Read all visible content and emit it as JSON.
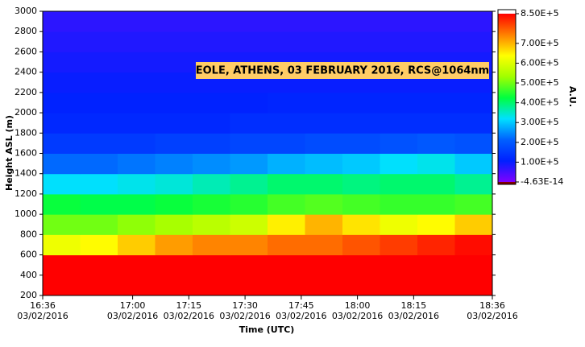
{
  "chart_data": {
    "type": "heatmap",
    "title": "EOLE, ATHENS, 03 FEBRUARY 2016, RCS@1064nm",
    "xlabel": "Time (UTC)",
    "ylabel": "Height ASL (m)",
    "colorbar_label": "A.U.",
    "xlim": [
      "16:36",
      "18:36"
    ],
    "xticks": [
      {
        "time": "16:36",
        "date": "03/02/2016"
      },
      {
        "time": "17:00",
        "date": "03/02/2016"
      },
      {
        "time": "17:15",
        "date": "03/02/2016"
      },
      {
        "time": "17:30",
        "date": "03/02/2016"
      },
      {
        "time": "17:45",
        "date": "03/02/2016"
      },
      {
        "time": "18:00",
        "date": "03/02/2016"
      },
      {
        "time": "18:15",
        "date": "03/02/2016"
      },
      {
        "time": "18:36",
        "date": "03/02/2016"
      }
    ],
    "ylim": [
      200,
      3000
    ],
    "yticks": [
      200,
      400,
      600,
      800,
      1000,
      1200,
      1400,
      1600,
      1800,
      2000,
      2200,
      2400,
      2600,
      2800,
      3000
    ],
    "clim": [
      -4.63e-14,
      850000
    ],
    "cticks": [
      {
        "value": 850000,
        "label": "8.50E+5"
      },
      {
        "value": 700000,
        "label": "7.00E+5"
      },
      {
        "value": 600000,
        "label": "6.00E+5"
      },
      {
        "value": 500000,
        "label": "5.00E+5"
      },
      {
        "value": 400000,
        "label": "4.00E+5"
      },
      {
        "value": 300000,
        "label": "3.00E+5"
      },
      {
        "value": 200000,
        "label": "2.00E+5"
      },
      {
        "value": 100000,
        "label": "1.00E+5"
      },
      {
        "value": -4.63e-14,
        "label": "-4.63E-14"
      }
    ],
    "colormap": [
      "#8000ff",
      "#0020ff",
      "#0060ff",
      "#00e0ff",
      "#00ff40",
      "#a0ff00",
      "#ffff00",
      "#ff8000",
      "#ff0000"
    ],
    "x": [
      "16:36",
      "16:46",
      "16:56",
      "17:06",
      "17:16",
      "17:26",
      "17:36",
      "17:46",
      "17:56",
      "18:06",
      "18:16",
      "18:26"
    ],
    "x_end": "18:36",
    "y": [
      200,
      400,
      600,
      800,
      1000,
      1200,
      1400,
      1600,
      1800,
      2000,
      2200,
      2400,
      2600,
      2800
    ],
    "y_step": 200,
    "z": [
      [
        850000,
        850000,
        850000,
        850000,
        850000,
        850000,
        850000,
        850000,
        850000,
        850000,
        850000,
        850000
      ],
      [
        850000,
        850000,
        850000,
        850000,
        850000,
        850000,
        850000,
        850000,
        850000,
        850000,
        850000,
        850000
      ],
      [
        620000,
        640000,
        680000,
        720000,
        740000,
        740000,
        760000,
        760000,
        780000,
        800000,
        820000,
        840000
      ],
      [
        500000,
        500000,
        520000,
        540000,
        560000,
        580000,
        650000,
        700000,
        660000,
        620000,
        640000,
        680000
      ],
      [
        430000,
        420000,
        420000,
        430000,
        440000,
        450000,
        470000,
        480000,
        470000,
        460000,
        460000,
        470000
      ],
      [
        320000,
        320000,
        330000,
        340000,
        360000,
        380000,
        400000,
        400000,
        390000,
        400000,
        400000,
        380000
      ],
      [
        220000,
        220000,
        230000,
        240000,
        250000,
        260000,
        280000,
        290000,
        300000,
        320000,
        330000,
        300000
      ],
      [
        150000,
        150000,
        150000,
        160000,
        160000,
        170000,
        170000,
        180000,
        180000,
        190000,
        200000,
        190000
      ],
      [
        120000,
        120000,
        120000,
        120000,
        120000,
        130000,
        130000,
        130000,
        130000,
        130000,
        130000,
        130000
      ],
      [
        110000,
        110000,
        110000,
        110000,
        110000,
        110000,
        115000,
        115000,
        115000,
        115000,
        115000,
        115000
      ],
      [
        100000,
        100000,
        100000,
        100000,
        100000,
        100000,
        100000,
        100000,
        100000,
        100000,
        100000,
        100000
      ],
      [
        90000,
        90000,
        90000,
        90000,
        90000,
        90000,
        90000,
        90000,
        90000,
        90000,
        90000,
        90000
      ],
      [
        80000,
        80000,
        80000,
        80000,
        80000,
        80000,
        80000,
        80000,
        80000,
        80000,
        80000,
        80000
      ],
      [
        70000,
        70000,
        70000,
        70000,
        70000,
        70000,
        70000,
        70000,
        70000,
        70000,
        70000,
        70000
      ]
    ]
  }
}
